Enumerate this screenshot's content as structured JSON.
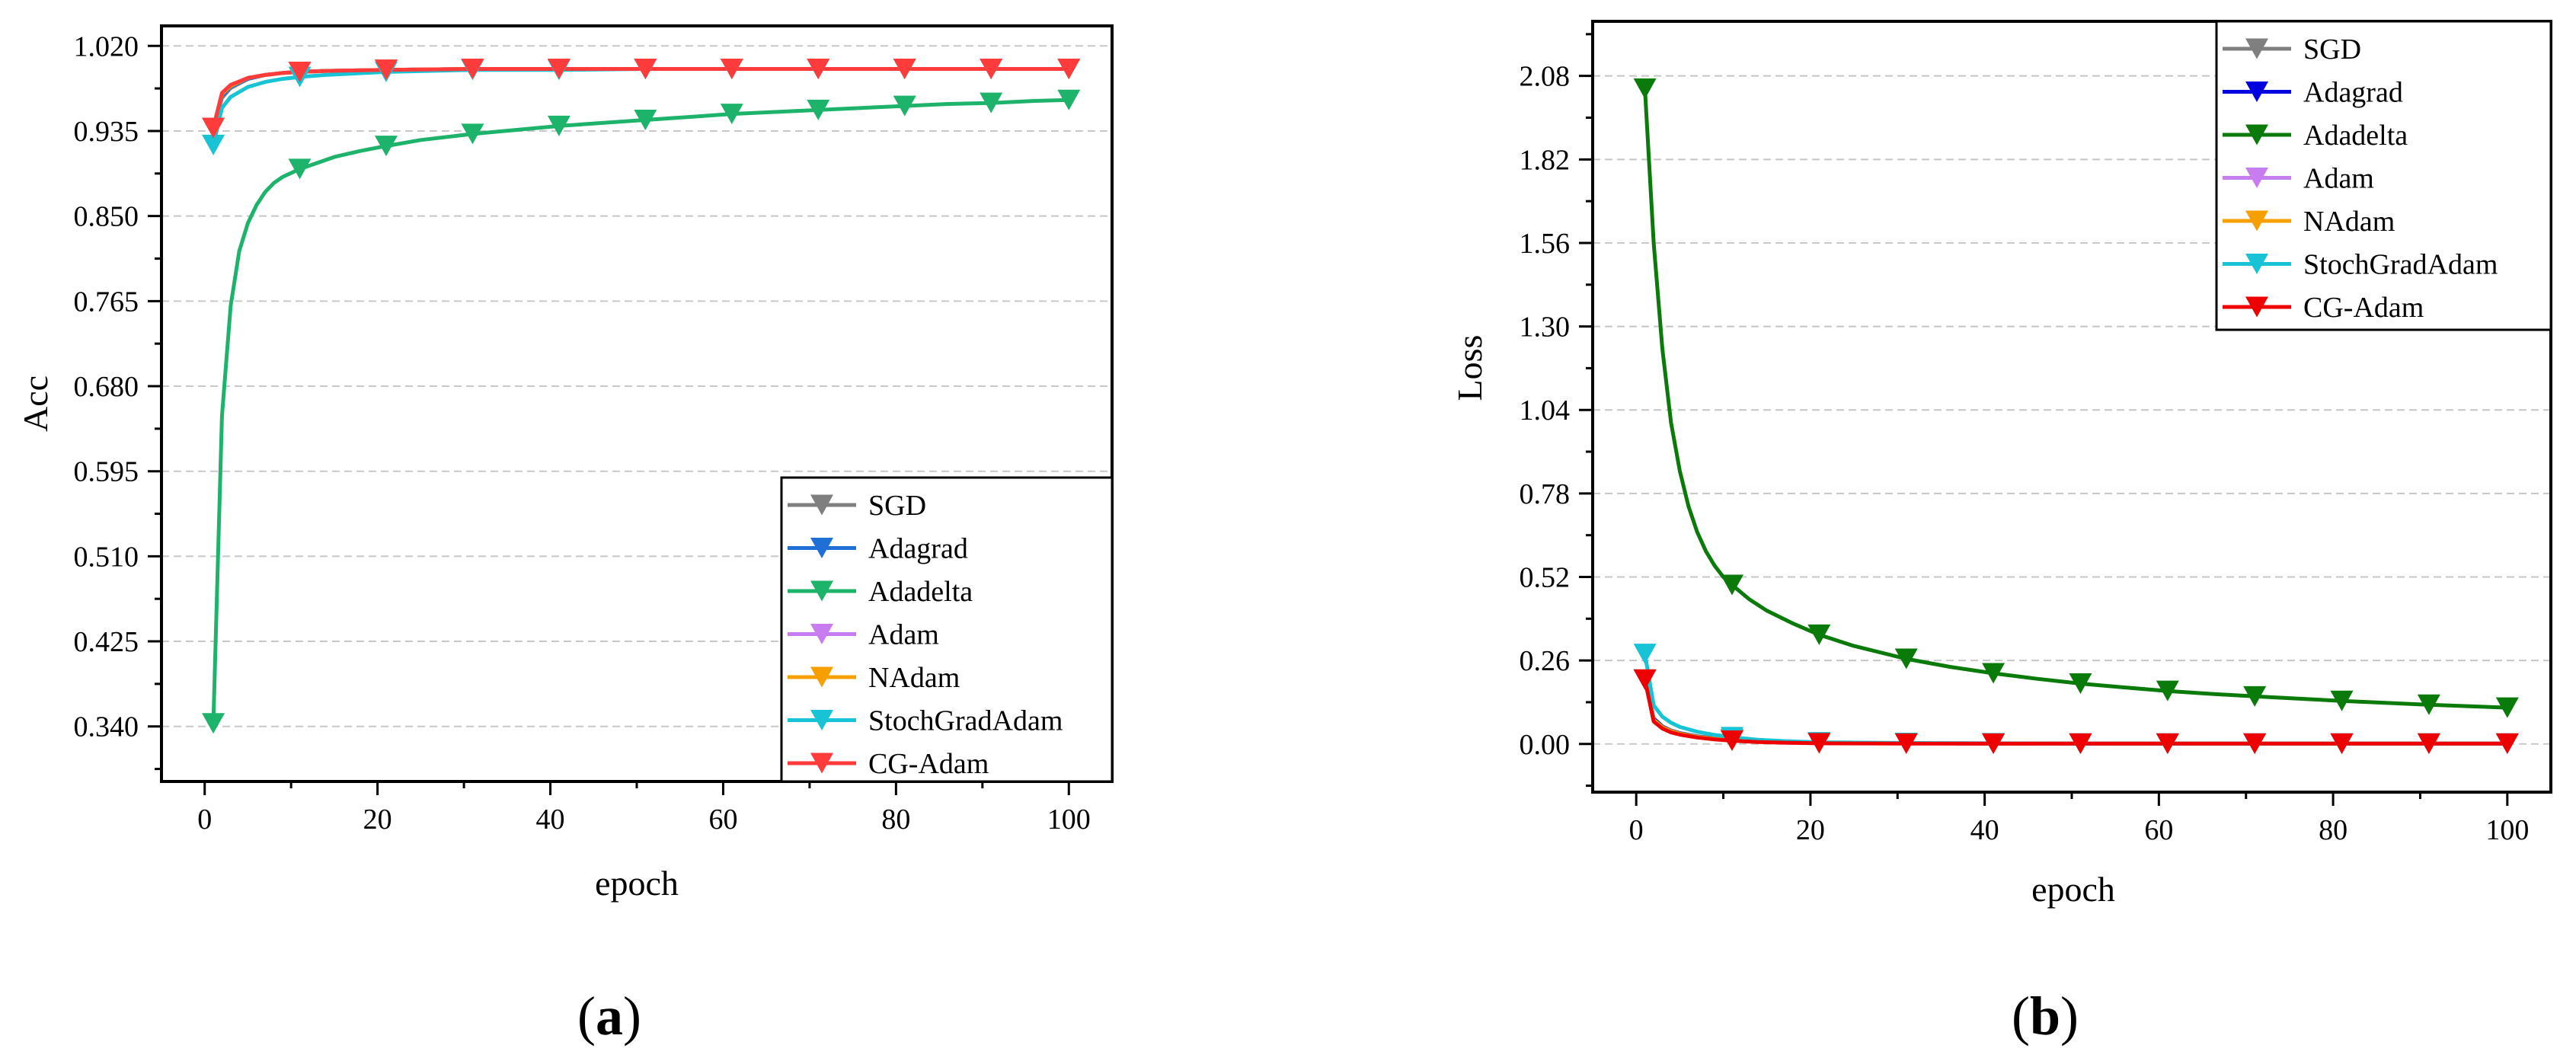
{
  "chart_data": [
    {
      "type": "line",
      "panel_label": "a",
      "xlabel": "epoch",
      "ylabel": "Acc",
      "xlim": [
        -5,
        105
      ],
      "ylim": [
        0.285,
        1.04
      ],
      "xticks": [
        0,
        20,
        40,
        60,
        80,
        100
      ],
      "yticks": [
        0.34,
        0.425,
        0.51,
        0.595,
        0.68,
        0.765,
        0.85,
        0.935,
        1.02
      ],
      "yticks_text": [
        "0.340",
        "0.425",
        "0.510",
        "0.595",
        "0.680",
        "0.765",
        "0.850",
        "0.935",
        "1.020"
      ],
      "legend_position": "bottom-right",
      "series": [
        {
          "name": "SGD",
          "color": "#7f7f7f",
          "x": [
            1,
            2,
            3,
            5,
            7,
            9,
            11,
            14,
            21,
            31,
            41,
            51,
            61,
            71,
            81,
            91,
            100
          ],
          "y": [
            0.938,
            0.968,
            0.978,
            0.987,
            0.991,
            0.993,
            0.994,
            0.995,
            0.996,
            0.997,
            0.997,
            0.997,
            0.997,
            0.997,
            0.997,
            0.997,
            0.997
          ]
        },
        {
          "name": "Adagrad",
          "color": "#1f6fd6",
          "x": [
            1,
            2,
            3,
            5,
            7,
            9,
            11,
            14,
            21,
            31,
            41,
            51,
            61,
            71,
            81,
            91,
            100
          ],
          "y": [
            0.938,
            0.97,
            0.979,
            0.987,
            0.991,
            0.993,
            0.994,
            0.995,
            0.996,
            0.997,
            0.997,
            0.997,
            0.997,
            0.997,
            0.997,
            0.997,
            0.997
          ]
        },
        {
          "name": "Adadelta",
          "color": "#1db36a",
          "x": [
            1,
            2,
            3,
            4,
            5,
            6,
            7,
            8,
            9,
            10,
            11,
            13,
            15,
            18,
            21,
            25,
            31,
            36,
            41,
            46,
            51,
            56,
            61,
            66,
            71,
            76,
            81,
            86,
            91,
            96,
            100
          ],
          "y": [
            0.343,
            0.65,
            0.76,
            0.815,
            0.843,
            0.861,
            0.874,
            0.883,
            0.889,
            0.893,
            0.897,
            0.903,
            0.909,
            0.915,
            0.92,
            0.926,
            0.932,
            0.936,
            0.94,
            0.943,
            0.946,
            0.949,
            0.952,
            0.954,
            0.956,
            0.958,
            0.96,
            0.962,
            0.963,
            0.965,
            0.966
          ]
        },
        {
          "name": "Adam",
          "color": "#c77cf0",
          "x": [
            1,
            2,
            3,
            5,
            7,
            9,
            11,
            14,
            21,
            31,
            41,
            51,
            61,
            71,
            81,
            91,
            100
          ],
          "y": [
            0.938,
            0.972,
            0.98,
            0.988,
            0.991,
            0.993,
            0.994,
            0.995,
            0.996,
            0.997,
            0.997,
            0.997,
            0.997,
            0.997,
            0.997,
            0.997,
            0.997
          ]
        },
        {
          "name": "NAdam",
          "color": "#f5a000",
          "x": [
            1,
            2,
            3,
            5,
            7,
            9,
            11,
            14,
            21,
            31,
            41,
            51,
            61,
            71,
            81,
            91,
            100
          ],
          "y": [
            0.938,
            0.972,
            0.98,
            0.988,
            0.991,
            0.993,
            0.994,
            0.995,
            0.996,
            0.997,
            0.997,
            0.997,
            0.997,
            0.997,
            0.997,
            0.997,
            0.997
          ]
        },
        {
          "name": "StochGradAdam",
          "color": "#17c3d4",
          "x": [
            1,
            2,
            3,
            5,
            7,
            9,
            11,
            14,
            21,
            31,
            41,
            51,
            61,
            71,
            81,
            91,
            100
          ],
          "y": [
            0.921,
            0.958,
            0.969,
            0.979,
            0.984,
            0.987,
            0.989,
            0.991,
            0.994,
            0.996,
            0.996,
            0.997,
            0.997,
            0.997,
            0.997,
            0.997,
            0.997
          ]
        },
        {
          "name": "CG-Adam",
          "color": "#ff3b3b",
          "x": [
            1,
            2,
            3,
            5,
            7,
            9,
            11,
            14,
            21,
            31,
            41,
            51,
            61,
            71,
            81,
            91,
            100
          ],
          "y": [
            0.938,
            0.973,
            0.981,
            0.988,
            0.991,
            0.993,
            0.994,
            0.995,
            0.996,
            0.997,
            0.997,
            0.997,
            0.997,
            0.997,
            0.997,
            0.997,
            0.997
          ]
        }
      ]
    },
    {
      "type": "line",
      "panel_label": "b",
      "xlabel": "epoch",
      "ylabel": "Loss",
      "xlim": [
        -5,
        105
      ],
      "ylim": [
        -0.15,
        2.25
      ],
      "xticks": [
        0,
        20,
        40,
        60,
        80,
        100
      ],
      "yticks": [
        0.0,
        0.26,
        0.52,
        0.78,
        1.04,
        1.3,
        1.56,
        1.82,
        2.08
      ],
      "yticks_text": [
        "0.00",
        "0.26",
        "0.52",
        "0.78",
        "1.04",
        "1.30",
        "1.56",
        "1.82",
        "2.08"
      ],
      "legend_position": "top-right",
      "series": [
        {
          "name": "SGD",
          "color": "#7f7f7f",
          "x": [
            1,
            2,
            3,
            4,
            5,
            7,
            9,
            11,
            14,
            17,
            21,
            31,
            41,
            51,
            61,
            71,
            81,
            91,
            100
          ],
          "y": [
            0.2,
            0.08,
            0.055,
            0.042,
            0.034,
            0.024,
            0.018,
            0.014,
            0.009,
            0.006,
            0.004,
            0.002,
            0.001,
            0.001,
            0.001,
            0.001,
            0.001,
            0.001,
            0.001
          ]
        },
        {
          "name": "Adagrad",
          "color": "#0000e0",
          "x": [
            1,
            2,
            3,
            4,
            5,
            7,
            9,
            11,
            14,
            17,
            21,
            31,
            41,
            51,
            61,
            71,
            81,
            91,
            100
          ],
          "y": [
            0.2,
            0.078,
            0.054,
            0.041,
            0.033,
            0.023,
            0.017,
            0.013,
            0.008,
            0.005,
            0.003,
            0.002,
            0.001,
            0.001,
            0.001,
            0.001,
            0.001,
            0.001,
            0.001
          ]
        },
        {
          "name": "Adadelta",
          "color": "#0a7a0a",
          "x": [
            1,
            2,
            3,
            4,
            5,
            6,
            7,
            8,
            9,
            10,
            11,
            13,
            15,
            18,
            21,
            25,
            31,
            36,
            41,
            46,
            51,
            56,
            61,
            66,
            71,
            76,
            81,
            86,
            91,
            96,
            100
          ],
          "y": [
            2.04,
            1.56,
            1.23,
            1.0,
            0.85,
            0.74,
            0.66,
            0.6,
            0.555,
            0.52,
            0.495,
            0.45,
            0.415,
            0.375,
            0.34,
            0.305,
            0.265,
            0.24,
            0.22,
            0.203,
            0.188,
            0.176,
            0.165,
            0.156,
            0.148,
            0.141,
            0.134,
            0.128,
            0.122,
            0.117,
            0.113
          ]
        },
        {
          "name": "Adam",
          "color": "#c77cf0",
          "x": [
            1,
            2,
            3,
            4,
            5,
            7,
            9,
            11,
            14,
            17,
            21,
            31,
            41,
            51,
            61,
            71,
            81,
            91,
            100
          ],
          "y": [
            0.2,
            0.075,
            0.052,
            0.04,
            0.032,
            0.022,
            0.016,
            0.012,
            0.008,
            0.005,
            0.003,
            0.002,
            0.001,
            0.001,
            0.001,
            0.001,
            0.001,
            0.001,
            0.001
          ]
        },
        {
          "name": "NAdam",
          "color": "#f5a000",
          "x": [
            1,
            2,
            3,
            4,
            5,
            7,
            9,
            11,
            14,
            17,
            21,
            31,
            41,
            51,
            61,
            71,
            81,
            91,
            100
          ],
          "y": [
            0.2,
            0.075,
            0.052,
            0.04,
            0.032,
            0.022,
            0.016,
            0.012,
            0.008,
            0.005,
            0.003,
            0.002,
            0.001,
            0.001,
            0.001,
            0.001,
            0.001,
            0.001,
            0.001
          ]
        },
        {
          "name": "StochGradAdam",
          "color": "#17c3d4",
          "x": [
            1,
            2,
            3,
            4,
            5,
            7,
            9,
            11,
            14,
            17,
            21,
            31,
            41,
            51,
            61,
            71,
            81,
            91,
            100
          ],
          "y": [
            0.28,
            0.12,
            0.085,
            0.066,
            0.053,
            0.038,
            0.028,
            0.021,
            0.013,
            0.009,
            0.005,
            0.003,
            0.002,
            0.001,
            0.001,
            0.001,
            0.001,
            0.001,
            0.001
          ]
        },
        {
          "name": "CG-Adam",
          "color": "#ee0000",
          "x": [
            1,
            2,
            3,
            4,
            5,
            7,
            9,
            11,
            14,
            17,
            21,
            31,
            41,
            51,
            61,
            71,
            81,
            91,
            100
          ],
          "y": [
            0.2,
            0.07,
            0.048,
            0.036,
            0.029,
            0.02,
            0.014,
            0.01,
            0.006,
            0.004,
            0.002,
            0.001,
            0.001,
            0.001,
            0.001,
            0.001,
            0.001,
            0.001,
            0.001
          ]
        }
      ]
    }
  ]
}
